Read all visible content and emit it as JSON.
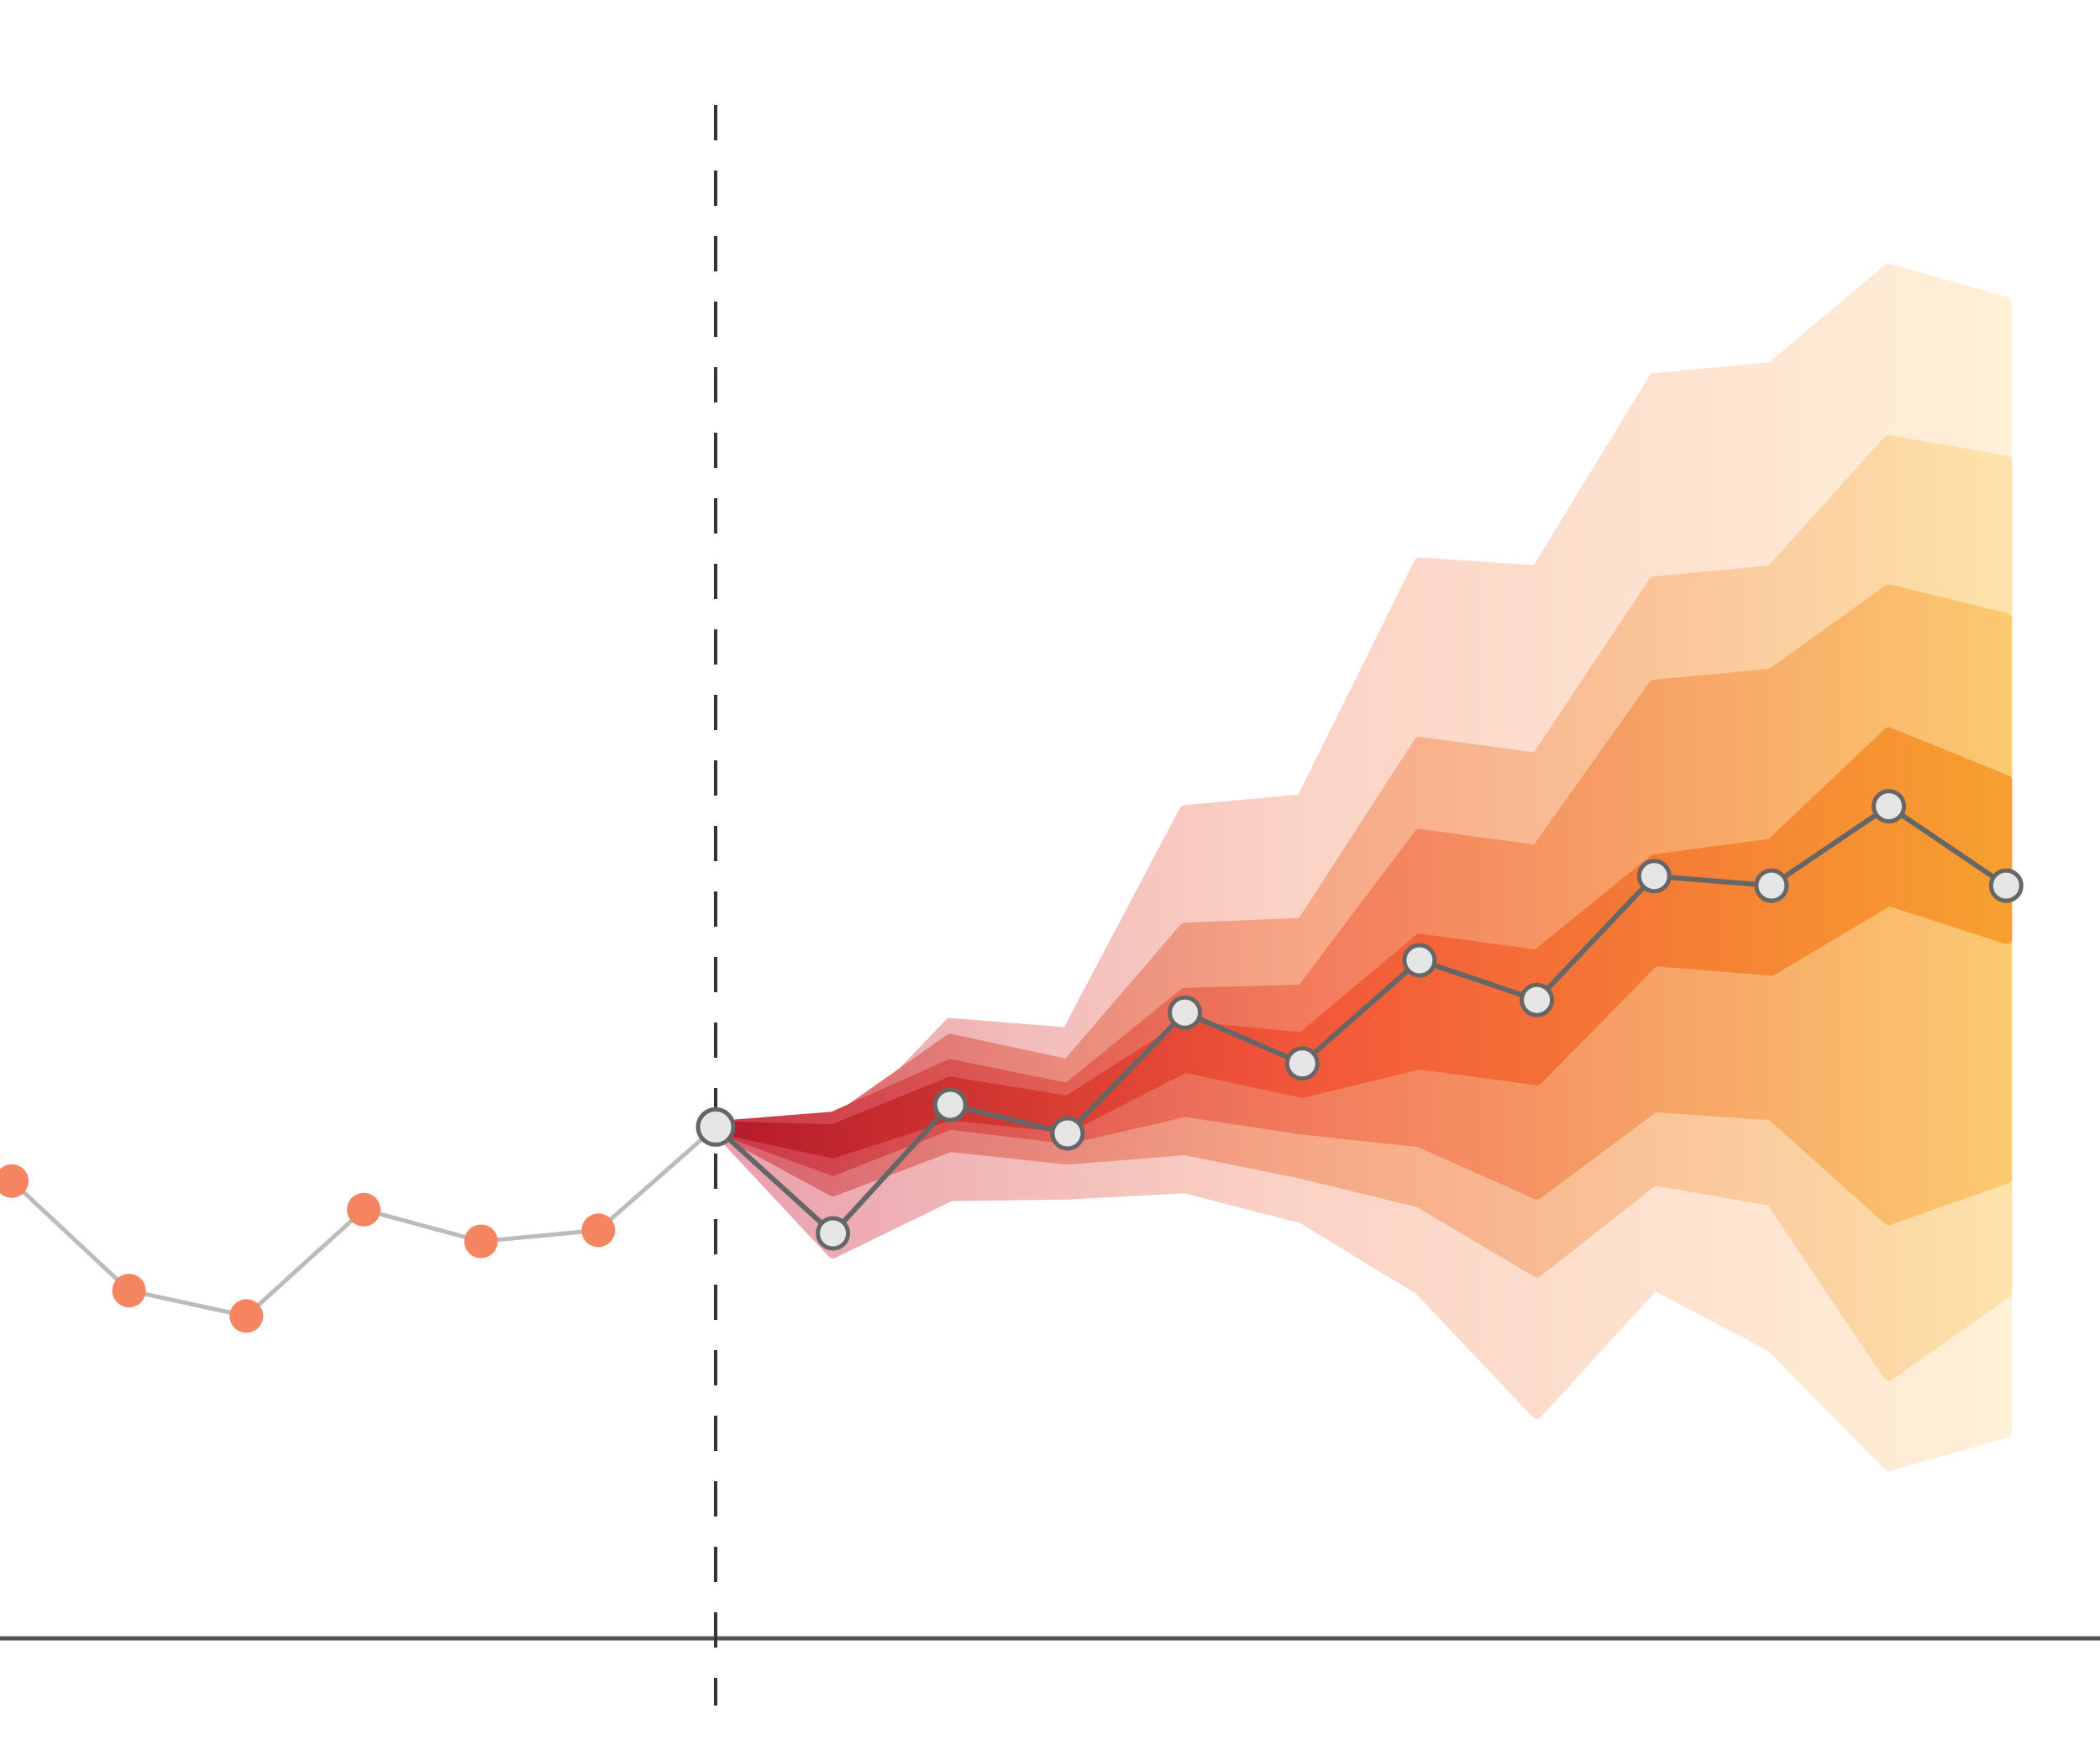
{
  "chart_data": {
    "type": "line",
    "title": "",
    "xlabel": "",
    "ylabel": "",
    "grid": false,
    "legend": "none",
    "xlim": [
      -0.1,
      17.8
    ],
    "ylim": [
      0,
      100
    ],
    "now_index": 6,
    "history": {
      "x": [
        0,
        1,
        2,
        3,
        4,
        5,
        6
      ],
      "values": [
        28.8,
        21.9,
        20.3,
        27.0,
        25.0,
        25.7,
        32.2
      ],
      "line_color": "#bbbbbb",
      "marker_color": "#f58460"
    },
    "forecast": {
      "x": [
        6,
        7,
        8,
        9,
        10,
        11,
        12,
        13,
        14,
        15,
        16,
        17
      ],
      "median": [
        32.2,
        25.5,
        33.6,
        31.8,
        39.4,
        36.2,
        42.7,
        40.2,
        48.0,
        47.4,
        52.4,
        47.4
      ],
      "marker_fill": "#e5e5e5",
      "line_color": "#666666"
    },
    "fan_bands": [
      {
        "level": "outer",
        "lower": [
          32.2,
          24.3,
          27.9,
          28.0,
          28.4,
          26.5,
          22.0,
          14.2,
          22.3,
          18.4,
          10.9,
          13.0
        ],
        "upper": [
          32.2,
          31.0,
          38.7,
          38.1,
          52.1,
          52.8,
          67.7,
          67.2,
          79.3,
          80.0,
          86.2,
          84.1
        ]
      },
      {
        "level": "second",
        "lower": [
          32.2,
          28.2,
          31.0,
          30.2,
          30.8,
          29.3,
          27.5,
          23.1,
          28.9,
          27.6,
          16.6,
          21.8
        ],
        "upper": [
          32.2,
          32.5,
          37.7,
          36.1,
          44.7,
          45.0,
          56.4,
          55.4,
          66.5,
          67.2,
          75.4,
          74.1
        ]
      },
      {
        "level": "third",
        "lower": [
          32.2,
          29.5,
          32.4,
          31.5,
          33.2,
          32.1,
          31.3,
          28.0,
          33.5,
          33.0,
          26.4,
          29.0
        ],
        "upper": [
          32.2,
          32.8,
          36.1,
          34.6,
          40.6,
          40.8,
          50.6,
          49.6,
          60.0,
          60.7,
          66.0,
          64.2
        ]
      },
      {
        "level": "inner",
        "lower": [
          32.2,
          30.6,
          33.0,
          32.2,
          36.0,
          34.4,
          36.2,
          35.2,
          42.7,
          42.1,
          46.5,
          44.1
        ],
        "upper": [
          32.2,
          32.0,
          35.0,
          33.8,
          38.5,
          37.8,
          44.0,
          43.0,
          49.0,
          50.0,
          57.0,
          54.0
        ]
      }
    ],
    "band_colors": {
      "outer_start": "#e8a0ac",
      "outer_mid": "#fbd3c6",
      "outer_end": "#fff0d8",
      "second_start": "#d5606e",
      "second_mid": "#f6a686",
      "second_end": "#fde2ab",
      "third_start": "#c9374a",
      "third_mid": "#f27a5c",
      "third_end": "#fbc970",
      "inner_start": "#b31a29",
      "inner_mid": "#f2563a",
      "inner_end": "#f7a030"
    },
    "axis_color": "#555555",
    "now_line_color": "#333333"
  }
}
